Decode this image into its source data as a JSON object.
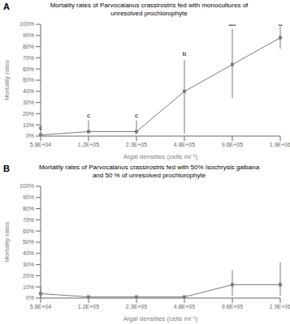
{
  "chart_data": [
    {
      "type": "line",
      "panel_label": "A",
      "title": "Mortality rates of Parvocalanus crassirostris fed with monocultures of\nunresolved prochlorophyte",
      "x_label": "Algal densities (cells ml⁻¹)",
      "y_label": "Mortality rates",
      "categories": [
        "5.8E+04",
        "1.2E+05",
        "2.3E+05",
        "4.8E+05",
        "9.6E+05",
        "1.9E+06"
      ],
      "values": [
        0.01,
        0.04,
        0.04,
        0.4,
        0.64,
        0.88
      ],
      "error_low": [
        0.01,
        0.02,
        0.02,
        0.38,
        0.3,
        0.1
      ],
      "error_high": [
        0.01,
        0.1,
        0.1,
        0.28,
        0.32,
        0.1
      ],
      "annotations": [
        {
          "x": "5.8E+04",
          "y": 0.04,
          "text": "c"
        },
        {
          "x": "1.2E+05",
          "y": 0.155,
          "text": "c"
        },
        {
          "x": "2.3E+05",
          "y": 0.155,
          "text": "c"
        },
        {
          "x": "4.8E+05",
          "y": 0.7,
          "text": "b"
        },
        {
          "x": "9.6E+05",
          "y": 0.97,
          "text": "ab"
        },
        {
          "x": "1.9E+06",
          "y": 0.97,
          "text": "a"
        }
      ],
      "color": "#7a7a7a",
      "marker": "square",
      "ylim": [
        0,
        1.0
      ],
      "yticks": [
        {
          "value": 0,
          "label": "0%"
        },
        {
          "value": 0.1,
          "label": "10%"
        },
        {
          "value": 0.2,
          "label": "20%"
        },
        {
          "value": 0.3,
          "label": "30%"
        },
        {
          "value": 0.4,
          "label": "40%"
        },
        {
          "value": 0.5,
          "label": "50%"
        },
        {
          "value": 0.6,
          "label": "60%"
        },
        {
          "value": 0.7,
          "label": "70%"
        },
        {
          "value": 0.8,
          "label": "80%"
        },
        {
          "value": 0.9,
          "label": "90%"
        },
        {
          "value": 1.0,
          "label": "100%"
        }
      ]
    },
    {
      "type": "line",
      "panel_label": "B",
      "title": "Mortality rates of Parvocalanus crassirostris fed with 50% Isochrysis galbana\nand 50 % of unresolved prochlorophyte",
      "x_label": "Algal densities (cells ml⁻¹)",
      "y_label": "Mortality rates",
      "categories": [
        "5.8E+04",
        "1.2E+05",
        "2.3E+05",
        "4.8E+05",
        "9.6E+05",
        "1.9E+06"
      ],
      "values": [
        0.04,
        0.01,
        0.01,
        0.01,
        0.12,
        0.12
      ],
      "error_low": [
        0.04,
        0.005,
        0.005,
        0.005,
        0.1,
        0.1
      ],
      "error_high": [
        0.06,
        0.005,
        0.005,
        0.005,
        0.13,
        0.2
      ],
      "color": "#7a7a7a",
      "marker": "square",
      "ylim": [
        0,
        1.0
      ],
      "yticks": [
        {
          "value": 0,
          "label": "0%"
        },
        {
          "value": 0.1,
          "label": "10%"
        },
        {
          "value": 0.2,
          "label": "20%"
        },
        {
          "value": 0.3,
          "label": "30%"
        },
        {
          "value": 0.4,
          "label": "40%"
        },
        {
          "value": 0.5,
          "label": "50%"
        },
        {
          "value": 0.6,
          "label": "60%"
        },
        {
          "value": 0.7,
          "label": "70%"
        },
        {
          "value": 0.8,
          "label": "80%"
        },
        {
          "value": 0.9,
          "label": "90%"
        },
        {
          "value": 1.0,
          "label": "100%"
        }
      ]
    }
  ]
}
